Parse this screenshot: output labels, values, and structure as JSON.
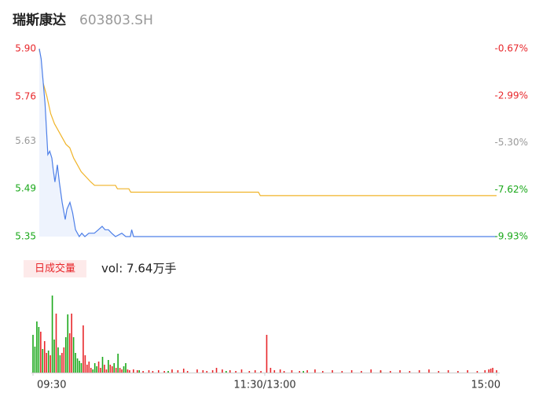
{
  "header": {
    "name": "瑞斯康达",
    "code": "603803.SH"
  },
  "volume_legend": {
    "label": "日成交量",
    "text": "vol: 7.64万手"
  },
  "chart_data": [
    {
      "type": "line",
      "xlim": [
        0,
        240
      ],
      "ylim": [
        5.35,
        5.9
      ],
      "yticks": [
        {
          "value": 5.9,
          "label": "5.90"
        },
        5.76,
        5.63,
        5.49,
        5.35
      ],
      "ytick_colors": [
        "#e8272b",
        "#e8272b",
        "#999999",
        "#1aa81a",
        "#1aa81a"
      ],
      "y2lim": [
        -9.93,
        -0.67
      ],
      "y2ticks": [
        {
          "value": -0.67,
          "label": "-0.67%"
        },
        {
          "value": -2.99,
          "label": "-2.99%"
        },
        {
          "value": -5.3,
          "label": "-5.30%"
        },
        {
          "value": -7.62,
          "label": "-7.62%"
        },
        {
          "value": -9.93,
          "label": "-9.93%"
        }
      ],
      "y2tick_colors": [
        "#e8272b",
        "#e8272b",
        "#999999",
        "#1aa81a",
        "#1aa81a"
      ],
      "series": [
        {
          "color": "#f0b429",
          "x": [
            0,
            2,
            4,
            6,
            8,
            10,
            14,
            16,
            18,
            20,
            22,
            27,
            29,
            40,
            41,
            47,
            48,
            115,
            116,
            240
          ],
          "values": [
            5.9,
            5.8,
            5.76,
            5.71,
            5.68,
            5.66,
            5.62,
            5.61,
            5.58,
            5.56,
            5.54,
            5.51,
            5.5,
            5.5,
            5.49,
            5.49,
            5.48,
            5.48,
            5.47,
            5.47
          ]
        },
        {
          "color": "#4d7fe8",
          "fill": "#eef3fd",
          "x": [
            0,
            1,
            3,
            4.5,
            5.5,
            6.6,
            7.2,
            8.2,
            9.5,
            10.5,
            12,
            13.6,
            14.5,
            16.1,
            17.5,
            19,
            21,
            22.3,
            23.9,
            26,
            28.9,
            31,
            33,
            34.5,
            36.3,
            38,
            40,
            43.3,
            45.4,
            47.8,
            48.5,
            49.5,
            240
          ],
          "values": [
            5.9,
            5.87,
            5.74,
            5.59,
            5.6,
            5.58,
            5.55,
            5.51,
            5.56,
            5.51,
            5.45,
            5.4,
            5.43,
            5.45,
            5.42,
            5.37,
            5.35,
            5.36,
            5.35,
            5.36,
            5.36,
            5.37,
            5.38,
            5.37,
            5.37,
            5.36,
            5.35,
            5.36,
            5.35,
            5.35,
            5.37,
            5.35,
            5.35
          ]
        }
      ]
    },
    {
      "type": "bar",
      "xlim": [
        0,
        240
      ],
      "xticks": [
        {
          "value": 0,
          "label": "09:30"
        },
        {
          "value": 120,
          "label": "11:30/13:00"
        },
        {
          "value": 240,
          "label": "15:00"
        }
      ],
      "series": [
        {
          "color": "#1aa81a",
          "x": [
            0,
            1,
            2,
            3,
            5,
            8,
            10,
            11,
            13,
            14,
            17,
            18,
            21,
            22,
            23,
            24,
            25,
            31,
            32,
            33,
            36,
            39,
            42,
            44,
            47,
            48,
            55,
            70,
            100,
            140,
            180
          ],
          "values": [
            2400,
            1650,
            3250,
            2900,
            1500,
            1400,
            4900,
            2100,
            1600,
            1100,
            2250,
            3700,
            2250,
            1250,
            900,
            750,
            600,
            200,
            600,
            400,
            1000,
            800,
            600,
            1200,
            400,
            600,
            150,
            100,
            100,
            100,
            100
          ]
        },
        {
          "color": "#e8272b",
          "x": [
            4,
            6,
            7,
            9,
            12,
            15,
            16,
            19,
            20,
            26,
            27,
            28,
            29,
            30,
            34,
            35,
            37,
            38,
            40,
            41,
            43,
            45,
            46,
            49,
            50,
            52,
            54,
            57,
            60,
            62,
            65,
            68,
            72,
            75,
            78,
            80,
            85,
            88,
            90,
            93,
            95,
            98,
            102,
            105,
            108,
            112,
            115,
            118,
            121,
            123,
            125,
            128,
            130,
            134,
            138,
            142,
            146,
            150,
            155,
            160,
            165,
            170,
            175,
            180,
            185,
            190,
            195,
            200,
            205,
            210,
            215,
            220,
            225,
            230,
            234,
            236,
            237,
            238,
            240
          ],
          "values": [
            2600,
            2000,
            1250,
            1100,
            3750,
            1250,
            1600,
            2500,
            3750,
            3000,
            1100,
            500,
            700,
            300,
            700,
            300,
            500,
            200,
            500,
            400,
            300,
            300,
            200,
            200,
            150,
            200,
            150,
            100,
            150,
            100,
            150,
            100,
            200,
            150,
            250,
            100,
            200,
            150,
            100,
            150,
            300,
            200,
            150,
            100,
            200,
            100,
            150,
            100,
            2400,
            300,
            150,
            200,
            100,
            150,
            100,
            150,
            200,
            100,
            150,
            100,
            150,
            100,
            200,
            150,
            100,
            150,
            100,
            150,
            200,
            100,
            150,
            100,
            150,
            100,
            150,
            200,
            250,
            300,
            150
          ]
        }
      ]
    }
  ]
}
